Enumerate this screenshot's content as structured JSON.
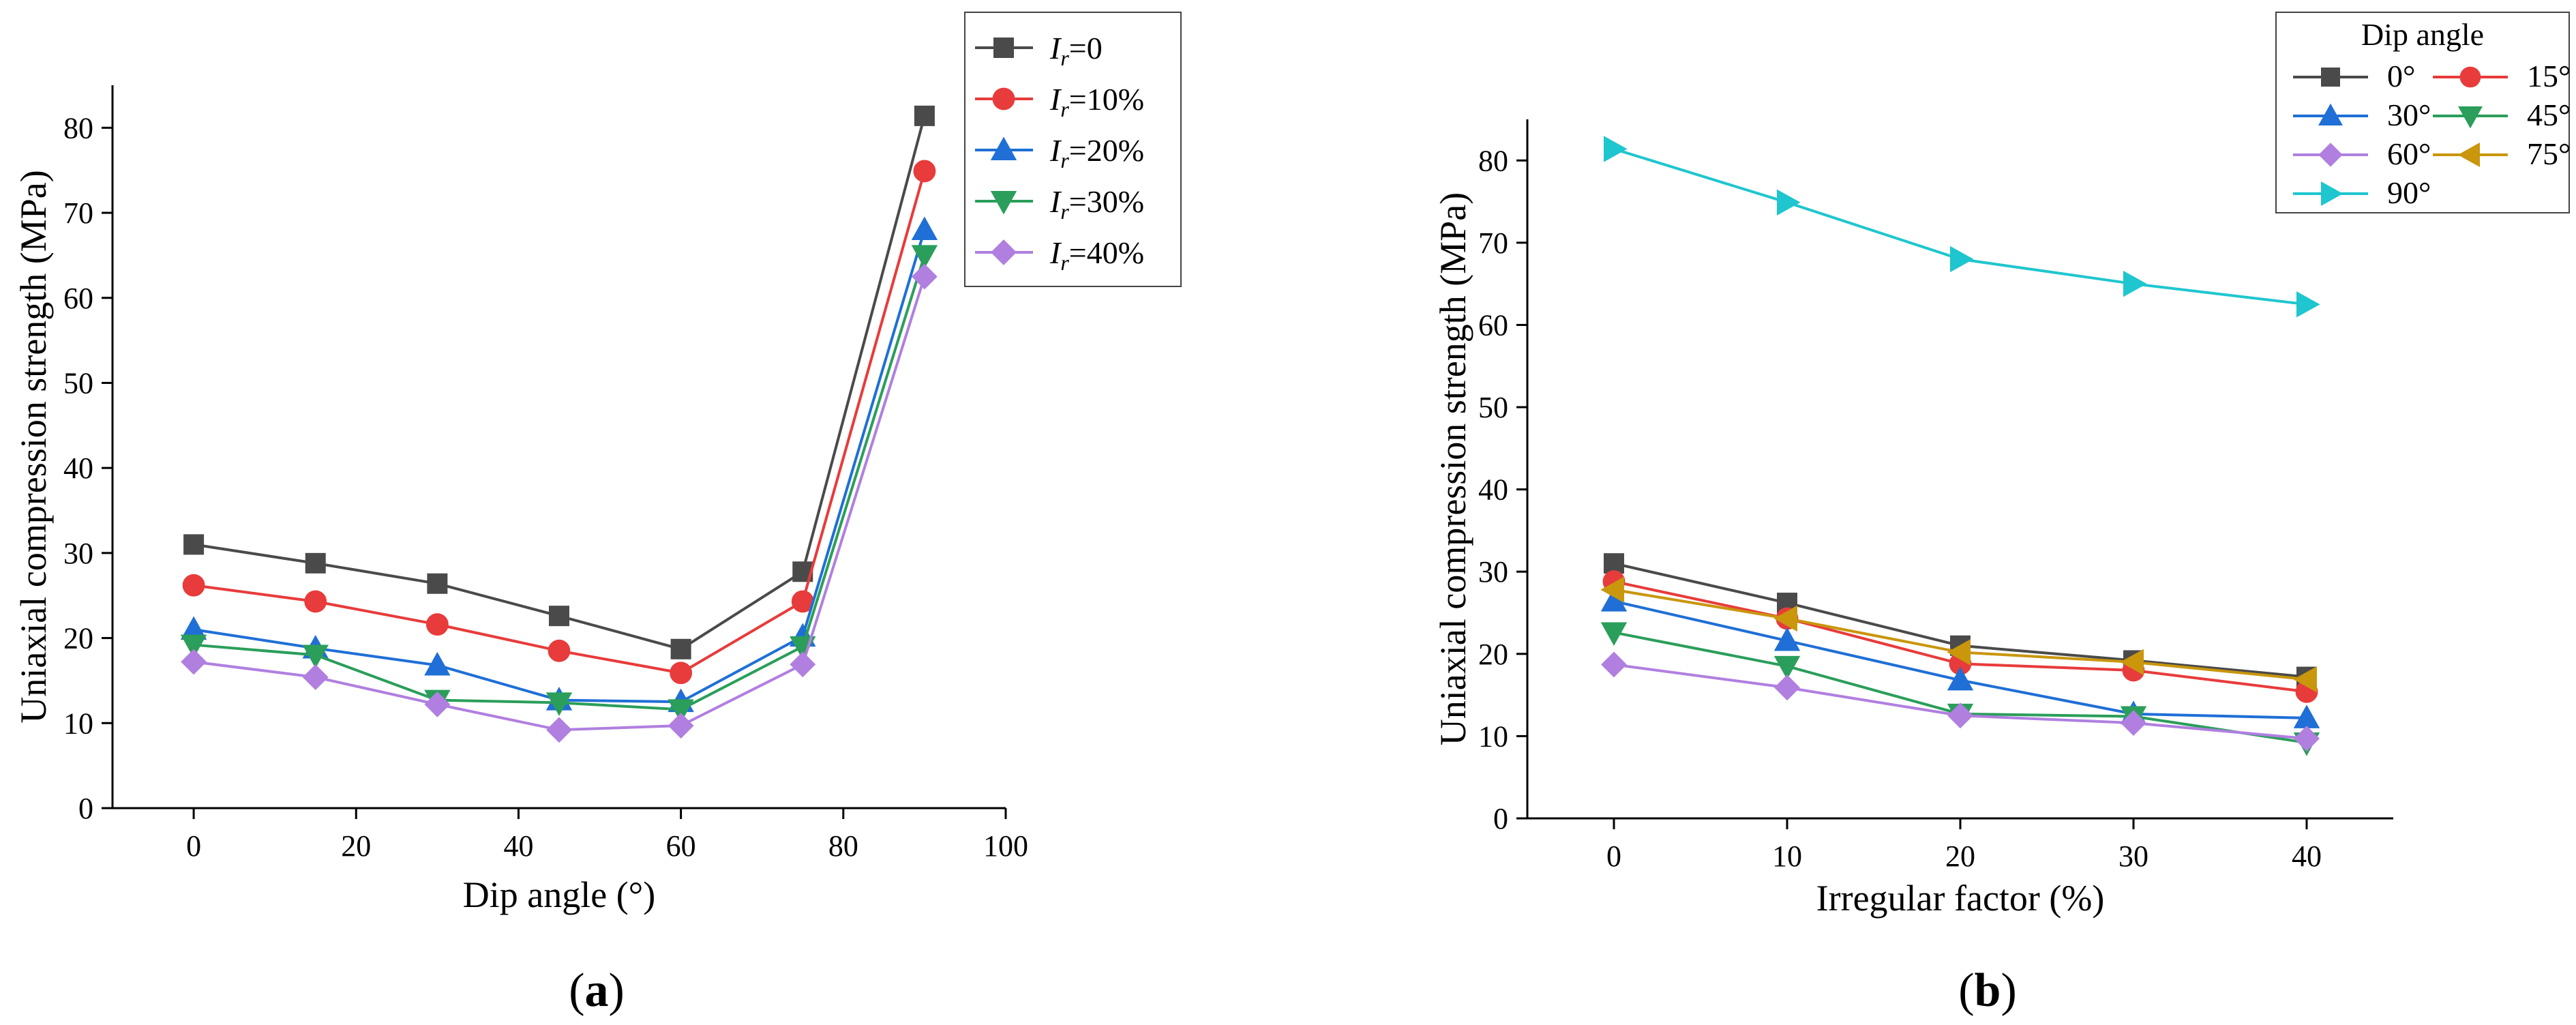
{
  "chart_data": [
    {
      "type": "line",
      "panel_label": "a",
      "xlabel": "Dip angle (°)",
      "ylabel": "Uniaxial compression strength (MPa)",
      "xlim": [
        -10,
        100
      ],
      "ylim": [
        0,
        85
      ],
      "xticks": [
        0,
        20,
        40,
        60,
        80,
        100
      ],
      "yticks": [
        0,
        10,
        20,
        30,
        40,
        50,
        60,
        70,
        80
      ],
      "x": [
        0,
        15,
        30,
        45,
        60,
        75,
        90
      ],
      "legend_position": "top-right",
      "legend_title": "",
      "series": [
        {
          "name": "=0",
          "label_prefix": "I",
          "label_sub": "r",
          "color": "#4a4a4a",
          "marker": "square",
          "values": [
            31.0,
            28.8,
            26.4,
            22.6,
            18.7,
            27.8,
            81.4
          ]
        },
        {
          "name": "=10%",
          "label_prefix": "I",
          "label_sub": "r",
          "color": "#e83b3b",
          "marker": "circle",
          "values": [
            26.2,
            24.3,
            21.6,
            18.5,
            15.9,
            24.3,
            74.9
          ]
        },
        {
          "name": "=20%",
          "label_prefix": "I",
          "label_sub": "r",
          "color": "#1f6fd6",
          "marker": "triangle-up",
          "values": [
            21.0,
            18.8,
            16.8,
            12.7,
            12.5,
            20.2,
            68.0
          ]
        },
        {
          "name": "=30%",
          "label_prefix": "I",
          "label_sub": "r",
          "color": "#2a9e5a",
          "marker": "triangle-down",
          "values": [
            19.2,
            18.0,
            12.7,
            12.4,
            11.6,
            19.0,
            65.0
          ]
        },
        {
          "name": "=40%",
          "label_prefix": "I",
          "label_sub": "r",
          "color": "#b07fe0",
          "marker": "diamond",
          "values": [
            17.2,
            15.4,
            12.2,
            9.2,
            9.7,
            16.9,
            62.5
          ]
        }
      ]
    },
    {
      "type": "line",
      "panel_label": "b",
      "xlabel": "Irregular factor (%)",
      "ylabel": "Uniaxial compression strength (MPa)",
      "xlim": [
        -5,
        45
      ],
      "ylim": [
        0,
        85
      ],
      "xticks": [
        0,
        10,
        20,
        30,
        40
      ],
      "yticks": [
        0,
        10,
        20,
        30,
        40,
        50,
        60,
        70,
        80
      ],
      "x": [
        0,
        10,
        20,
        30,
        40
      ],
      "legend_position": "top-right",
      "legend_title": "Dip angle",
      "series": [
        {
          "name": "0°",
          "color": "#4a4a4a",
          "marker": "square",
          "values": [
            31.0,
            26.2,
            21.0,
            19.2,
            17.2
          ]
        },
        {
          "name": "15°",
          "color": "#e83b3b",
          "marker": "circle",
          "values": [
            28.8,
            24.3,
            18.8,
            18.0,
            15.4
          ]
        },
        {
          "name": "30°",
          "color": "#1f6fd6",
          "marker": "triangle-up",
          "values": [
            26.4,
            21.6,
            16.8,
            12.7,
            12.2
          ]
        },
        {
          "name": "45°",
          "color": "#2a9e5a",
          "marker": "triangle-down",
          "values": [
            22.6,
            18.5,
            12.7,
            12.4,
            9.2
          ]
        },
        {
          "name": "60°",
          "color": "#b07fe0",
          "marker": "diamond",
          "values": [
            18.7,
            15.9,
            12.5,
            11.6,
            9.7
          ]
        },
        {
          "name": "75°",
          "color": "#c9960c",
          "marker": "triangle-left",
          "values": [
            27.8,
            24.3,
            20.2,
            19.0,
            16.9
          ]
        },
        {
          "name": "90°",
          "color": "#1fc6cf",
          "marker": "triangle-right",
          "values": [
            81.4,
            74.9,
            68.0,
            65.0,
            62.5
          ]
        }
      ]
    }
  ]
}
